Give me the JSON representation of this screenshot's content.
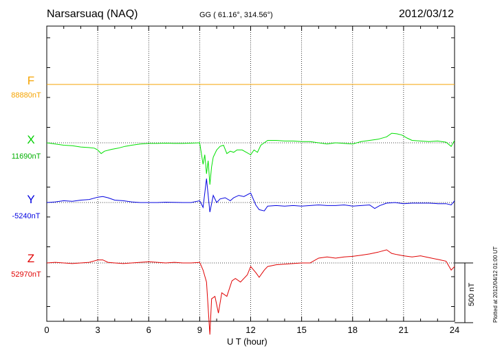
{
  "header": {
    "station": "Narsarsuaq (NAQ)",
    "coords": "GG ( 61.16°, 314.56°)",
    "date": "2012/03/12"
  },
  "plotted_note": "Plotted at 2012/04/12 01:00 UT",
  "scale_label": "500 nT",
  "chart_data": {
    "type": "line",
    "xlabel": "U T (hour)",
    "xlim": [
      0,
      24
    ],
    "xticks": [
      0,
      3,
      6,
      9,
      12,
      15,
      18,
      21,
      24
    ],
    "grid": true,
    "scale_bar_nT": 500,
    "series": [
      {
        "name": "F",
        "baseline_label": "88880nT",
        "color": "#f5a300",
        "x": [
          0,
          24
        ],
        "y": [
          0,
          0
        ]
      },
      {
        "name": "X",
        "baseline_label": "11690nT",
        "color": "#00e000",
        "x": [
          0,
          0.5,
          1,
          1.5,
          2,
          2.5,
          2.8,
          3,
          3.2,
          3.4,
          3.8,
          4.2,
          4.6,
          5,
          5.5,
          6,
          6.5,
          7,
          7.5,
          8,
          8.5,
          9,
          9.2,
          9.3,
          9.4,
          9.5,
          9.6,
          9.7,
          9.8,
          10,
          10.2,
          10.4,
          10.6,
          10.8,
          11,
          11.2,
          11.5,
          12,
          12.2,
          12.4,
          12.6,
          12.8,
          13,
          13.5,
          14,
          14.5,
          15,
          15.5,
          16,
          16.5,
          17,
          17.5,
          18,
          18.5,
          19,
          19.5,
          20,
          20.3,
          20.6,
          20.9,
          21.2,
          21.5,
          22,
          22.5,
          23,
          23.5,
          23.8,
          24
        ],
        "y": [
          0,
          -10,
          -20,
          -25,
          -35,
          -40,
          -45,
          -60,
          -90,
          -70,
          -55,
          -45,
          -30,
          -20,
          -10,
          -5,
          -5,
          -3,
          -5,
          -5,
          -3,
          0,
          -180,
          -100,
          -260,
          -150,
          -350,
          -200,
          -120,
          -60,
          -30,
          -20,
          -90,
          -70,
          -80,
          -60,
          -60,
          -100,
          -60,
          -80,
          -20,
          0,
          20,
          20,
          15,
          15,
          10,
          10,
          0,
          -10,
          0,
          -5,
          -10,
          10,
          20,
          30,
          50,
          80,
          75,
          65,
          40,
          20,
          15,
          10,
          15,
          5,
          -30,
          20
        ]
      },
      {
        "name": "Y",
        "baseline_label": "-5240nT",
        "color": "#0000e0",
        "x": [
          0,
          0.5,
          1,
          1.5,
          2,
          2.5,
          3,
          3.3,
          3.6,
          4,
          4.5,
          5,
          5.5,
          6,
          6.5,
          7,
          7.5,
          8,
          8.5,
          9,
          9.2,
          9.4,
          9.6,
          9.8,
          10,
          10.2,
          10.5,
          10.8,
          11,
          11.3,
          11.6,
          12,
          12.3,
          12.5,
          12.8,
          13,
          13.5,
          14,
          14.5,
          15,
          15.5,
          16,
          16.5,
          17,
          17.5,
          18,
          18.5,
          19,
          19.3,
          19.6,
          20,
          20.5,
          21,
          21.5,
          22,
          22.5,
          23,
          23.5,
          23.8,
          24
        ],
        "y": [
          0,
          5,
          15,
          10,
          20,
          25,
          45,
          50,
          40,
          20,
          15,
          5,
          0,
          0,
          0,
          3,
          2,
          0,
          0,
          15,
          -40,
          200,
          -80,
          60,
          0,
          30,
          40,
          15,
          40,
          60,
          50,
          80,
          -20,
          -60,
          -70,
          -30,
          -25,
          -30,
          -25,
          -30,
          -25,
          -20,
          -25,
          -25,
          -20,
          -30,
          -25,
          -20,
          -50,
          -25,
          -5,
          0,
          -10,
          -5,
          -5,
          -5,
          -10,
          -10,
          -20,
          15
        ]
      },
      {
        "name": "Z",
        "baseline_label": "52970nT",
        "color": "#e00000",
        "x": [
          0,
          0.5,
          1,
          1.5,
          2,
          2.5,
          3,
          3.3,
          3.6,
          4,
          4.5,
          5,
          5.5,
          6,
          6.5,
          7,
          7.5,
          8,
          8.5,
          9,
          9.2,
          9.4,
          9.6,
          9.7,
          9.9,
          10.1,
          10.3,
          10.6,
          10.9,
          11.1,
          11.4,
          11.8,
          12,
          12.3,
          12.5,
          12.8,
          13,
          13.5,
          14,
          14.5,
          15,
          15.5,
          16,
          16.5,
          17,
          17.5,
          18,
          18.5,
          19,
          19.5,
          20,
          20.3,
          20.6,
          21,
          21.5,
          22,
          22.5,
          23,
          23.5,
          23.8,
          24
        ],
        "y": [
          0,
          5,
          0,
          -5,
          0,
          5,
          25,
          25,
          5,
          0,
          -5,
          0,
          5,
          10,
          5,
          0,
          5,
          0,
          0,
          5,
          -60,
          -160,
          -600,
          -300,
          -280,
          -420,
          -250,
          -280,
          -150,
          -130,
          -160,
          -100,
          -30,
          -80,
          -120,
          -60,
          -30,
          -15,
          -10,
          -5,
          0,
          0,
          40,
          50,
          40,
          50,
          55,
          65,
          75,
          90,
          110,
          80,
          70,
          60,
          50,
          60,
          45,
          30,
          15,
          -60,
          -30
        ]
      }
    ]
  }
}
